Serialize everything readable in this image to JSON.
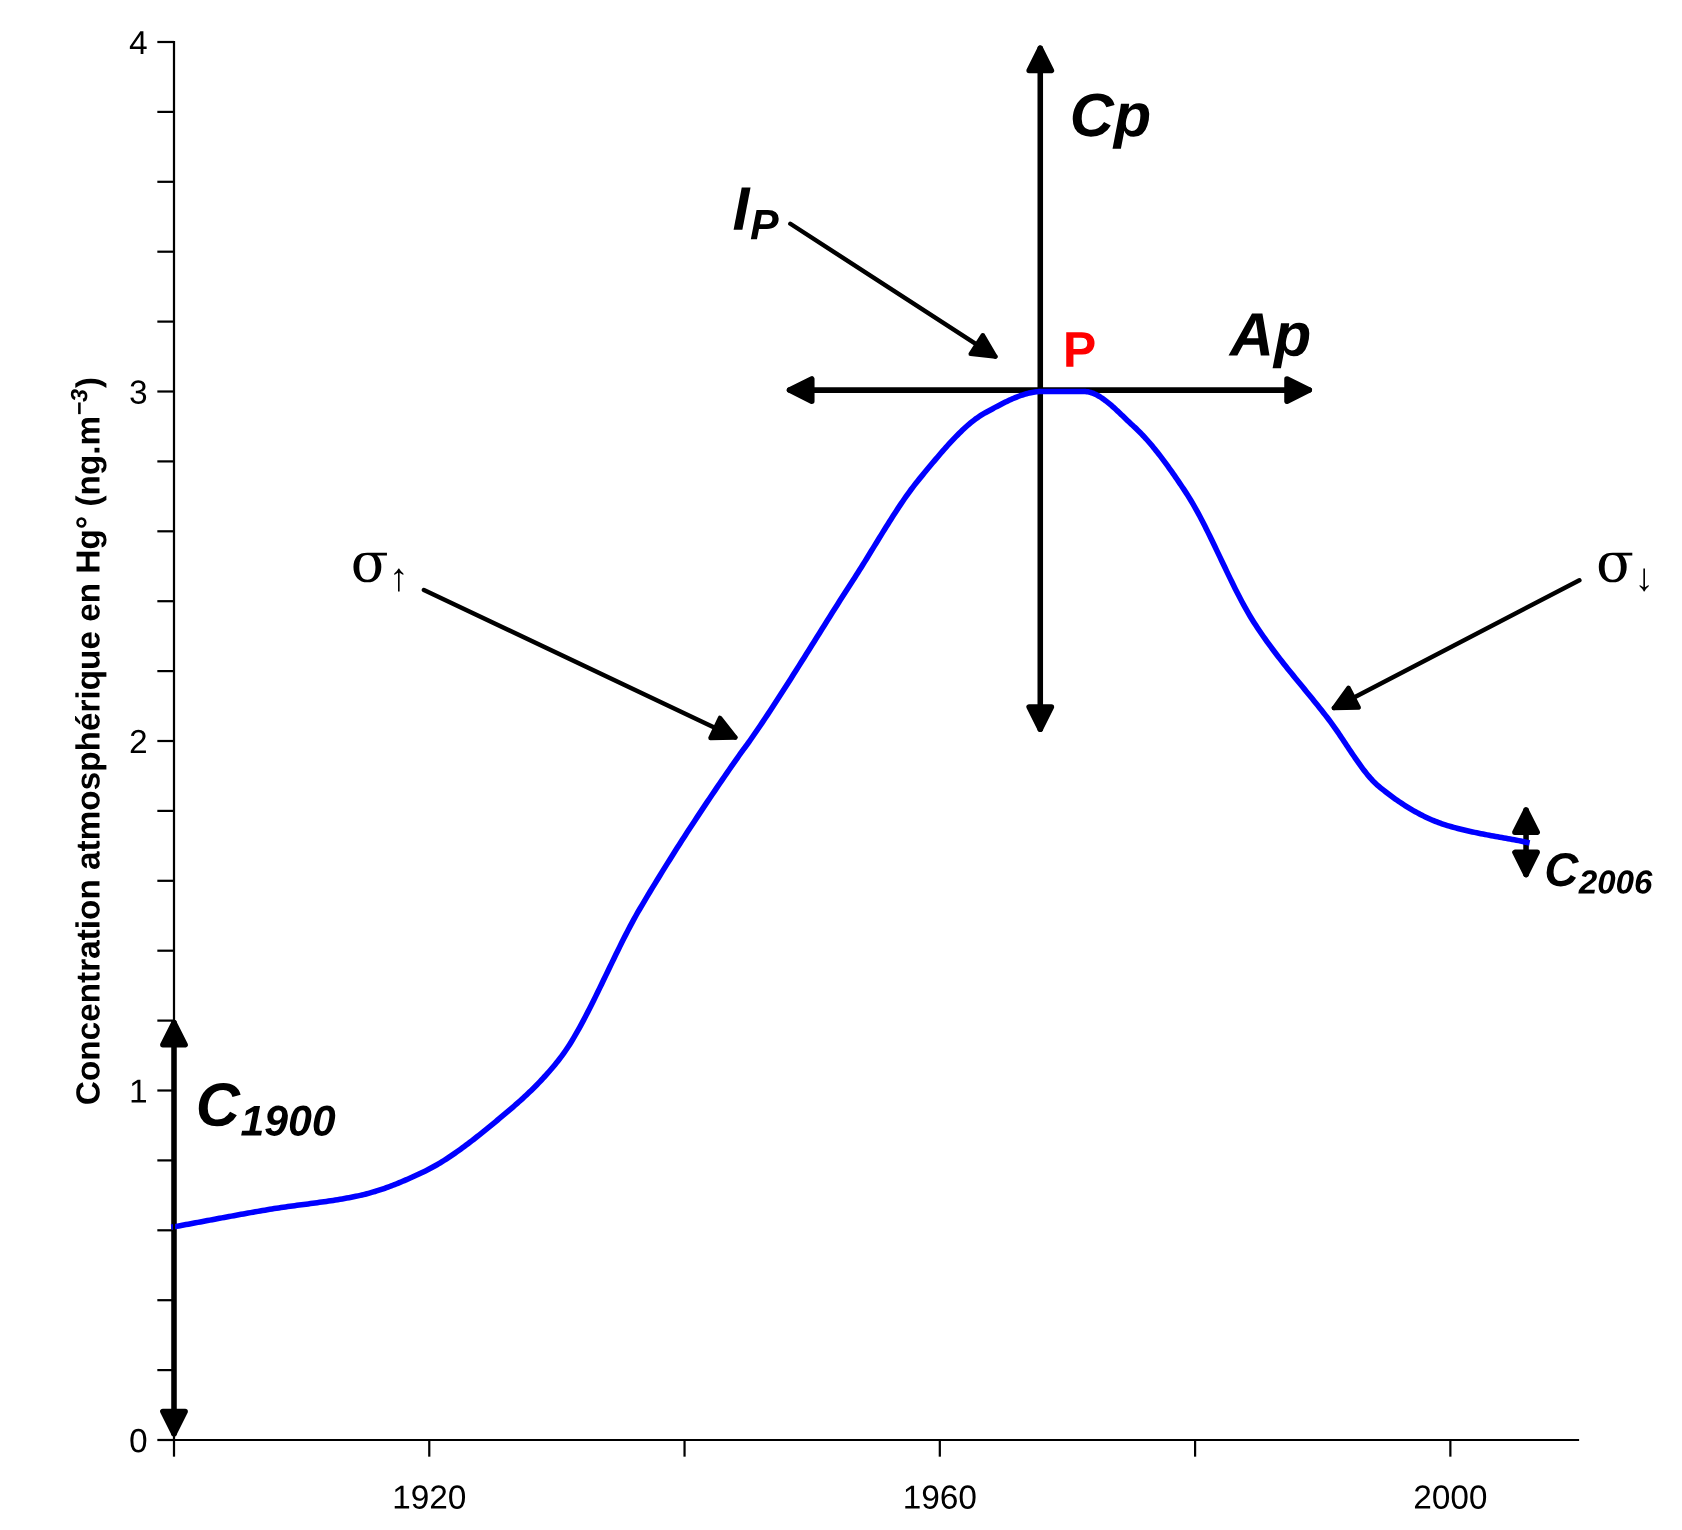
{
  "chart_data": {
    "type": "line",
    "ylabel": "Concentration atmosphérique en Hg° (ng.m$^{−3}$)",
    "x": [
      1900,
      1907.5,
      1914.6,
      1919.7,
      1925.5,
      1930.2,
      1936.5,
      1944.3,
      1945.1,
      1953.2,
      1958.4,
      1963.6,
      1968,
      1971.3,
      1975.2,
      1979.3,
      1984.6,
      1990.5,
      1994.4,
      1999.6,
      2006
    ],
    "series": [
      {
        "color": "#0000ff",
        "values": [
          0.61,
          0.66,
          0.7,
          0.77,
          0.92,
          1.09,
          1.52,
          1.96,
          2.0,
          2.46,
          2.75,
          2.94,
          3.0,
          3.0,
          2.9,
          2.71,
          2.34,
          2.06,
          1.87,
          1.76,
          1.71
        ]
      }
    ],
    "xlim": [
      1900,
      2010
    ],
    "ylim": [
      0,
      4
    ],
    "xticks": [
      {
        "value": 1900,
        "label": null
      },
      1920,
      {
        "value": 1940,
        "label": null
      },
      1960,
      {
        "value": 1980,
        "label": null
      },
      2000
    ],
    "yticks": [
      0,
      {
        "value": 0.2,
        "label": null
      },
      {
        "value": 0.4,
        "label": null
      },
      {
        "value": 0.6,
        "label": null
      },
      {
        "value": 0.8,
        "label": null
      },
      1,
      {
        "value": 1.2,
        "label": null
      },
      {
        "value": 1.4,
        "label": null
      },
      {
        "value": 1.6,
        "label": null
      },
      {
        "value": 1.8,
        "label": null
      },
      2,
      {
        "value": 2.2,
        "label": null
      },
      {
        "value": 2.4,
        "label": null
      },
      {
        "value": 2.6,
        "label": null
      },
      {
        "value": 2.8,
        "label": null
      },
      3,
      {
        "value": 3.2,
        "label": null
      },
      {
        "value": 3.4,
        "label": null
      },
      {
        "value": 3.6,
        "label": null
      },
      {
        "value": 3.8,
        "label": null
      },
      4
    ],
    "grid": false,
    "legend": false,
    "marker": "none",
    "line_style": "solid",
    "annotations": [
      "C$_{1900}$",
      "σ$_{↑}$",
      "I$_{P}$",
      "P",
      "Cp",
      "Ap",
      "σ$_{↓}$",
      "C$_{2006}$"
    ]
  }
}
